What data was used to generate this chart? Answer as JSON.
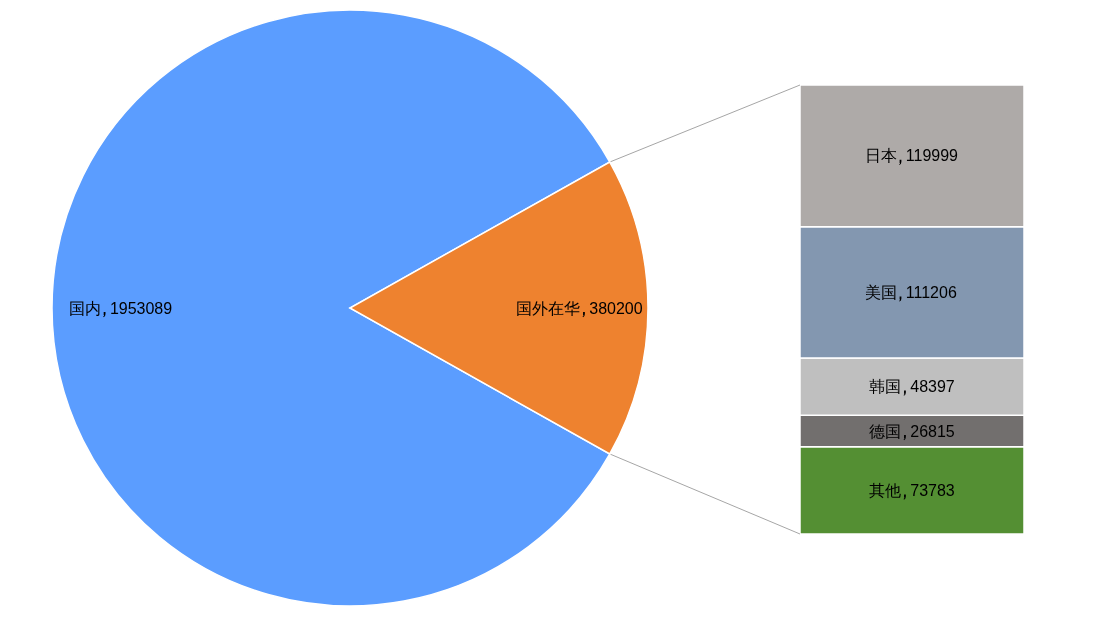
{
  "chart_data": [
    {
      "type": "pie",
      "categories": [
        "国内",
        "国外在华"
      ],
      "values": [
        1953089,
        380200
      ],
      "colors": [
        "#5b9dff",
        "#ee822f"
      ],
      "data_labels": true
    },
    {
      "type": "bar",
      "stacked": true,
      "categories": [
        null
      ],
      "data_labels": true,
      "series": [
        {
          "name": "其他",
          "color": "#548f33",
          "values": [
            73783
          ]
        },
        {
          "name": "德国",
          "color": "#726f6e",
          "values": [
            26815
          ]
        },
        {
          "name": "韩国",
          "color": "#bfbfbf",
          "values": [
            48397
          ]
        },
        {
          "name": "美国",
          "color": "#8397b0",
          "values": [
            111206
          ]
        },
        {
          "name": "日本",
          "color": "#aeaaa8",
          "values": [
            119999
          ]
        }
      ]
    }
  ]
}
